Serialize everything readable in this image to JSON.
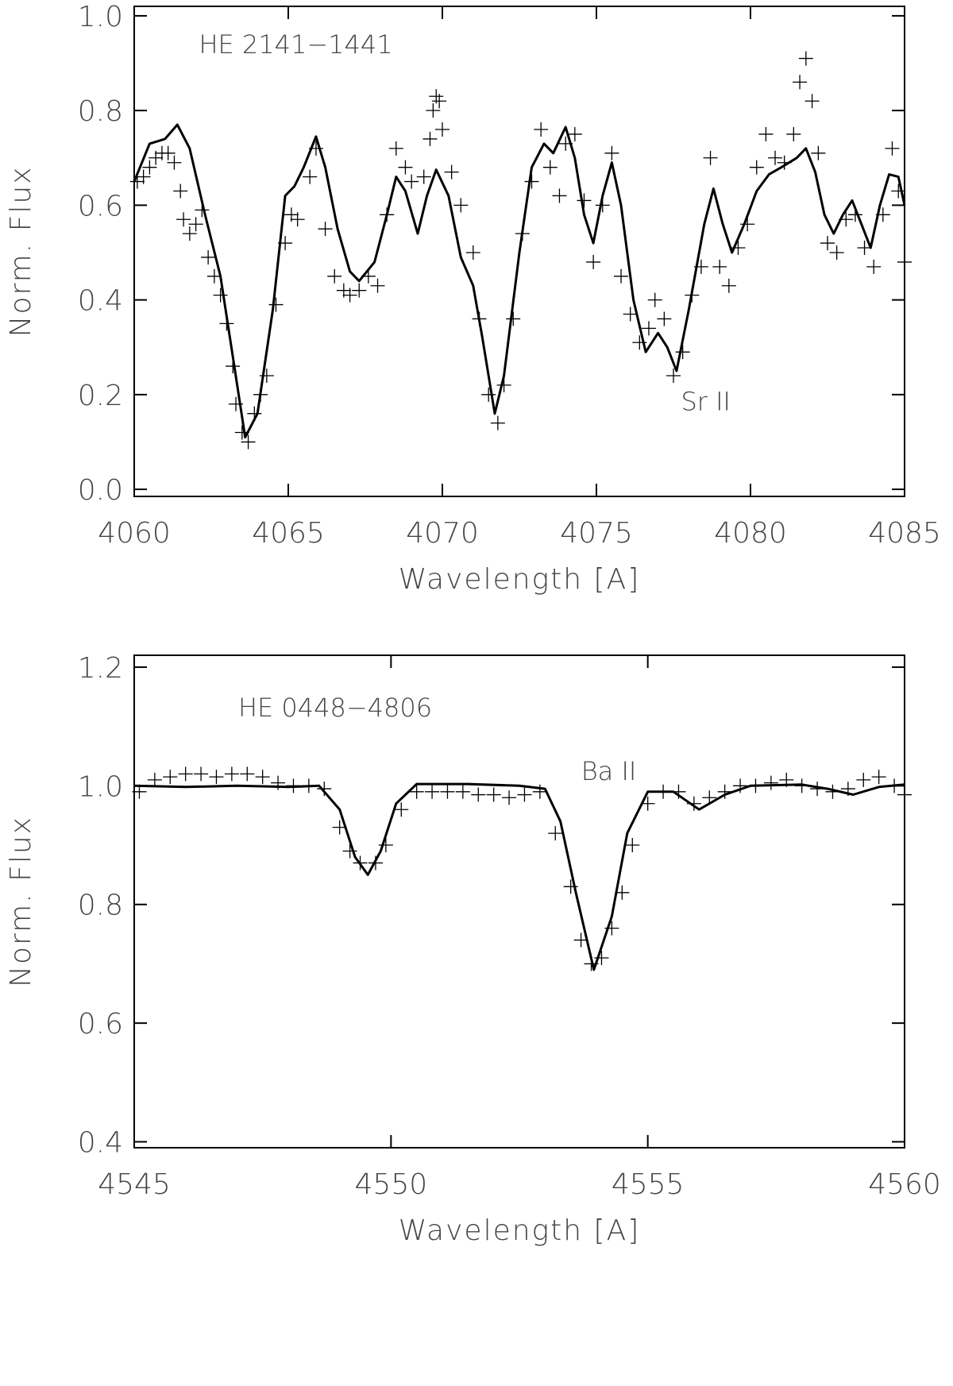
{
  "chart_data": [
    {
      "type": "line",
      "label": "HE 2141−1441",
      "annotation": "Sr II",
      "xlabel": "Wavelength [A]",
      "ylabel": "Norm. Flux",
      "xlim": [
        4060,
        4085
      ],
      "xticks": [
        4060,
        4065,
        4070,
        4075,
        4080,
        4085
      ],
      "ylim": [
        -0.015,
        1.02
      ],
      "yticks": [
        {
          "value": 0,
          "label": "0.0"
        },
        0.2,
        0.4,
        0.6,
        0.8,
        {
          "value": 1,
          "label": "1.0"
        }
      ],
      "series": [
        {
          "type": "scatter",
          "marker": "+",
          "color": "#000000",
          "x": [
            4060.1,
            4060.3,
            4060.5,
            4060.7,
            4060.9,
            4061.1,
            4061.3,
            4061.5,
            4061.6,
            4061.8,
            4062.0,
            4062.2,
            4062.4,
            4062.6,
            4062.8,
            4063.0,
            4063.2,
            4063.3,
            4063.5,
            4063.7,
            4063.9,
            4064.1,
            4064.3,
            4064.6,
            4064.9,
            4065.1,
            4065.3,
            4065.7,
            4065.9,
            4066.2,
            4066.5,
            4066.8,
            4067.0,
            4067.3,
            4067.6,
            4067.9,
            4068.2,
            4068.5,
            4068.8,
            4069.0,
            4069.4,
            4069.6,
            4069.7,
            4069.8,
            4069.9,
            4070.0,
            4070.3,
            4070.6,
            4071.0,
            4071.2,
            4071.5,
            4071.8,
            4072.0,
            4072.3,
            4072.6,
            4072.9,
            4073.2,
            4073.5,
            4073.8,
            4074.0,
            4074.3,
            4074.6,
            4074.9,
            4075.2,
            4075.5,
            4075.8,
            4076.1,
            4076.4,
            4076.7,
            4076.9,
            4077.2,
            4077.5,
            4077.8,
            4078.1,
            4078.4,
            4078.7,
            4079.0,
            4079.3,
            4079.6,
            4079.9,
            4080.2,
            4080.5,
            4080.8,
            4081.1,
            4081.4,
            4081.6,
            4081.8,
            4082.0,
            4082.2,
            4082.5,
            4082.8,
            4083.1,
            4083.4,
            4083.7,
            4084.0,
            4084.3,
            4084.6,
            4084.8,
            4085.0
          ],
          "values": [
            0.65,
            0.66,
            0.68,
            0.7,
            0.71,
            0.71,
            0.69,
            0.63,
            0.57,
            0.54,
            0.56,
            0.59,
            0.49,
            0.45,
            0.41,
            0.35,
            0.26,
            0.18,
            0.12,
            0.1,
            0.16,
            0.2,
            0.24,
            0.39,
            0.52,
            0.58,
            0.57,
            0.66,
            0.72,
            0.55,
            0.45,
            0.42,
            0.41,
            0.42,
            0.45,
            0.43,
            0.58,
            0.72,
            0.68,
            0.65,
            0.66,
            0.74,
            0.8,
            0.83,
            0.82,
            0.76,
            0.67,
            0.6,
            0.5,
            0.36,
            0.2,
            0.14,
            0.22,
            0.36,
            0.54,
            0.65,
            0.76,
            0.68,
            0.62,
            0.73,
            0.75,
            0.61,
            0.48,
            0.6,
            0.71,
            0.45,
            0.37,
            0.31,
            0.34,
            0.4,
            0.36,
            0.24,
            0.29,
            0.41,
            0.47,
            0.7,
            0.47,
            0.43,
            0.51,
            0.56,
            0.68,
            0.75,
            0.7,
            0.69,
            0.75,
            0.86,
            0.91,
            0.82,
            0.71,
            0.52,
            0.5,
            0.57,
            0.58,
            0.51,
            0.47,
            0.58,
            0.72,
            0.63,
            0.48
          ]
        },
        {
          "type": "line",
          "color": "#000000",
          "x": [
            4060.0,
            4060.5,
            4061.0,
            4061.4,
            4061.8,
            4062.3,
            4062.8,
            4063.2,
            4063.6,
            4064.0,
            4064.5,
            4064.9,
            4065.2,
            4065.5,
            4065.9,
            4066.2,
            4066.6,
            4067.0,
            4067.3,
            4067.8,
            4068.2,
            4068.5,
            4068.8,
            4069.2,
            4069.5,
            4069.8,
            4070.2,
            4070.6,
            4071.0,
            4071.3,
            4071.7,
            4072.0,
            4072.5,
            4072.9,
            4073.3,
            4073.6,
            4074.0,
            4074.3,
            4074.6,
            4074.9,
            4075.2,
            4075.5,
            4075.8,
            4076.2,
            4076.6,
            4077.0,
            4077.3,
            4077.6,
            4078.0,
            4078.5,
            4078.8,
            4079.1,
            4079.4,
            4079.8,
            4080.2,
            4080.6,
            4081.0,
            4081.5,
            4081.8,
            4082.1,
            4082.4,
            4082.7,
            4083.0,
            4083.3,
            4083.6,
            4083.9,
            4084.2,
            4084.5,
            4084.8,
            4085.0
          ],
          "values": [
            0.65,
            0.73,
            0.74,
            0.77,
            0.72,
            0.58,
            0.45,
            0.28,
            0.11,
            0.16,
            0.38,
            0.62,
            0.64,
            0.68,
            0.745,
            0.68,
            0.55,
            0.46,
            0.44,
            0.48,
            0.58,
            0.66,
            0.63,
            0.54,
            0.62,
            0.675,
            0.62,
            0.49,
            0.43,
            0.32,
            0.16,
            0.24,
            0.5,
            0.68,
            0.73,
            0.71,
            0.765,
            0.7,
            0.58,
            0.52,
            0.62,
            0.69,
            0.6,
            0.4,
            0.29,
            0.33,
            0.3,
            0.25,
            0.38,
            0.56,
            0.635,
            0.56,
            0.5,
            0.56,
            0.63,
            0.665,
            0.68,
            0.7,
            0.72,
            0.67,
            0.58,
            0.54,
            0.58,
            0.61,
            0.56,
            0.51,
            0.6,
            0.665,
            0.66,
            0.6
          ]
        }
      ]
    },
    {
      "type": "line",
      "label": "HE 0448−4806",
      "annotation": "Ba II",
      "xlabel": "Wavelength [A]",
      "ylabel": "Norm. Flux",
      "xlim": [
        4545,
        4560
      ],
      "xticks": [
        4545,
        4550,
        4555,
        4560
      ],
      "ylim": [
        0.39,
        1.22
      ],
      "yticks": [
        0.4,
        0.6,
        0.8,
        {
          "value": 1,
          "label": "1.0"
        },
        1.2
      ],
      "series": [
        {
          "type": "scatter",
          "marker": "+",
          "color": "#000000",
          "x": [
            4545.1,
            4545.4,
            4545.7,
            4546.0,
            4546.3,
            4546.6,
            4546.9,
            4547.2,
            4547.5,
            4547.8,
            4548.1,
            4548.4,
            4548.7,
            4549.0,
            4549.2,
            4549.4,
            4549.7,
            4549.9,
            4550.2,
            4550.5,
            4550.8,
            4551.1,
            4551.4,
            4551.7,
            4552.0,
            4552.3,
            4552.6,
            4552.9,
            4553.2,
            4553.5,
            4553.7,
            4553.9,
            4554.1,
            4554.3,
            4554.5,
            4554.7,
            4555.0,
            4555.3,
            4555.6,
            4555.9,
            4556.2,
            4556.5,
            4556.8,
            4557.1,
            4557.4,
            4557.7,
            4558.0,
            4558.3,
            4558.6,
            4558.9,
            4559.2,
            4559.5,
            4559.8,
            4560.0
          ],
          "values": [
            0.99,
            1.01,
            1.015,
            1.02,
            1.02,
            1.015,
            1.02,
            1.02,
            1.015,
            1.005,
            1.0,
            1.0,
            0.995,
            0.93,
            0.89,
            0.87,
            0.87,
            0.9,
            0.96,
            0.99,
            0.99,
            0.99,
            0.99,
            0.985,
            0.985,
            0.98,
            0.985,
            0.99,
            0.92,
            0.83,
            0.74,
            0.7,
            0.71,
            0.76,
            0.82,
            0.9,
            0.97,
            0.99,
            0.99,
            0.97,
            0.98,
            0.99,
            1.0,
            1.0,
            1.005,
            1.01,
            1.0,
            0.995,
            0.99,
            0.995,
            1.01,
            1.015,
            1.0,
            0.985
          ]
        },
        {
          "type": "line",
          "color": "#000000",
          "x": [
            4545,
            4546,
            4547,
            4548,
            4548.6,
            4549.0,
            4549.3,
            4549.55,
            4549.8,
            4550.1,
            4550.5,
            4551.5,
            4552.5,
            4553.0,
            4553.3,
            4553.6,
            4553.95,
            4554.3,
            4554.6,
            4555.0,
            4555.5,
            4556.0,
            4556.5,
            4557.0,
            4558.0,
            4558.5,
            4559.0,
            4559.5,
            4560
          ],
          "values": [
            1.0,
            0.998,
            1.0,
            0.998,
            1.0,
            0.96,
            0.88,
            0.85,
            0.89,
            0.97,
            1.003,
            1.003,
            1.0,
            0.995,
            0.94,
            0.82,
            0.69,
            0.78,
            0.92,
            0.99,
            0.99,
            0.96,
            0.985,
            1.0,
            1.002,
            0.995,
            0.985,
            0.998,
            1.002
          ]
        }
      ]
    }
  ]
}
